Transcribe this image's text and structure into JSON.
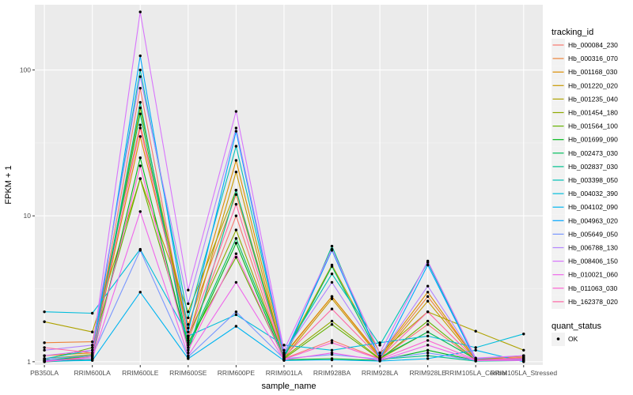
{
  "chart_data": {
    "type": "line",
    "title": "",
    "xlabel": "sample_name",
    "ylabel": "FPKM + 1",
    "y_scale": "log10",
    "ylim": [
      0.95,
      280
    ],
    "y_ticks": [
      1,
      10,
      100
    ],
    "y_tick_labels": [
      "1",
      "10",
      "100"
    ],
    "grid": true,
    "legend_position": "right",
    "background": "#ebebeb",
    "categories": [
      "PB350LA",
      "RRIM600LA",
      "RRIM600LE",
      "RRIM600SE",
      "RRIM600PE",
      "RRIM901LA",
      "RRIM928BA",
      "RRIM928LA",
      "RRIM928LE",
      "RRIM105LA_Control",
      "RRIM105LA_Stressed"
    ],
    "legend": {
      "title": "tracking_id",
      "items": [
        "Hb_000084_230",
        "Hb_000316_070",
        "Hb_001168_030",
        "Hb_001220_020",
        "Hb_001235_040",
        "Hb_001454_180",
        "Hb_001564_100",
        "Hb_001699_090",
        "Hb_002473_030",
        "Hb_002837_030",
        "Hb_003398_050",
        "Hb_004032_390",
        "Hb_004102_090",
        "Hb_004963_020",
        "Hb_005649_050",
        "Hb_006788_130",
        "Hb_008406_150",
        "Hb_010021_060",
        "Hb_011063_030",
        "Hb_162378_020"
      ]
    },
    "legend2": {
      "title": "quant_status",
      "items": [
        "OK"
      ]
    },
    "series": [
      {
        "name": "Hb_000084_230",
        "color": "#F8766D",
        "values": [
          1.05,
          1.1,
          75,
          1.4,
          10,
          1.05,
          1.4,
          1.05,
          1.8,
          1.02,
          1.05
        ]
      },
      {
        "name": "Hb_000316_070",
        "color": "#EC8239",
        "values": [
          1.35,
          1.37,
          42,
          1.8,
          14,
          1.1,
          2.8,
          1.08,
          2.8,
          1.05,
          1.08
        ]
      },
      {
        "name": "Hb_001168_030",
        "color": "#DB8E00",
        "values": [
          1.1,
          1.15,
          35,
          1.7,
          24,
          1.12,
          2.8,
          1.1,
          3.0,
          1.04,
          1.1
        ]
      },
      {
        "name": "Hb_001220_020",
        "color": "#C79800",
        "values": [
          1.02,
          1.08,
          55,
          1.45,
          20,
          1.06,
          2.7,
          1.06,
          2.6,
          1.03,
          1.06
        ]
      },
      {
        "name": "Hb_001235_040",
        "color": "#AEA200",
        "values": [
          1.88,
          1.6,
          18,
          2.2,
          15,
          1.12,
          4.6,
          1.15,
          2.2,
          1.62,
          1.2
        ]
      },
      {
        "name": "Hb_001454_180",
        "color": "#8FAA00",
        "values": [
          1.05,
          1.12,
          55,
          1.5,
          8,
          1.07,
          1.9,
          1.05,
          1.6,
          1.04,
          1.06
        ]
      },
      {
        "name": "Hb_001564_100",
        "color": "#64B200",
        "values": [
          1.03,
          1.25,
          18,
          1.35,
          5.2,
          1.05,
          1.8,
          1.04,
          1.9,
          1.03,
          1.05
        ]
      },
      {
        "name": "Hb_001699_090",
        "color": "#00B81B",
        "values": [
          1.0,
          1.05,
          25,
          1.25,
          6.5,
          1.03,
          1.05,
          1.02,
          1.2,
          1.02,
          1.03
        ]
      },
      {
        "name": "Hb_002473_030",
        "color": "#00BD5C",
        "values": [
          1.02,
          1.1,
          50,
          1.3,
          7,
          1.08,
          4.5,
          1.07,
          1.6,
          1.04,
          1.05
        ]
      },
      {
        "name": "Hb_002837_030",
        "color": "#00C08E",
        "values": [
          1.0,
          1.03,
          60,
          1.15,
          15,
          1.04,
          6.2,
          1.04,
          1.1,
          1.01,
          1.02
        ]
      },
      {
        "name": "Hb_003398_050",
        "color": "#00C1B7",
        "values": [
          1.05,
          1.2,
          100,
          2.0,
          30,
          1.15,
          4.0,
          1.3,
          4.8,
          1.02,
          1.05
        ]
      },
      {
        "name": "Hb_004032_390",
        "color": "#00BDDC",
        "values": [
          2.2,
          2.15,
          5.9,
          1.5,
          2.1,
          1.3,
          1.2,
          1.35,
          1.5,
          1.25,
          1.55
        ]
      },
      {
        "name": "Hb_004102_090",
        "color": "#00B4F0",
        "values": [
          1.01,
          1.02,
          3.0,
          1.05,
          1.75,
          1.02,
          1.03,
          1.01,
          1.05,
          1.2,
          1.0
        ]
      },
      {
        "name": "Hb_004963_020",
        "color": "#00A6FF",
        "values": [
          1.03,
          1.05,
          125,
          1.6,
          38,
          1.1,
          5.8,
          1.05,
          4.6,
          1.02,
          1.04
        ]
      },
      {
        "name": "Hb_005649_050",
        "color": "#7997FF",
        "values": [
          1.05,
          1.1,
          5.8,
          1.08,
          2.2,
          1.05,
          1.12,
          1.04,
          1.15,
          1.02,
          1.03
        ]
      },
      {
        "name": "Hb_006788_130",
        "color": "#B385FF",
        "values": [
          1.2,
          1.3,
          90,
          2.5,
          40,
          1.15,
          3.5,
          1.1,
          3.3,
          1.05,
          1.1
        ]
      },
      {
        "name": "Hb_008406_150",
        "color": "#D874FD",
        "values": [
          1.1,
          1.2,
          250,
          3.1,
          52,
          1.2,
          5.9,
          1.15,
          4.9,
          1.06,
          1.1
        ]
      },
      {
        "name": "Hb_010021_060",
        "color": "#EF67EB",
        "values": [
          1.02,
          1.05,
          10.7,
          1.1,
          3.5,
          1.03,
          1.15,
          1.02,
          1.3,
          1.02,
          1.02
        ]
      },
      {
        "name": "Hb_011063_030",
        "color": "#FD61D1",
        "values": [
          1.0,
          1.08,
          22,
          1.2,
          5.5,
          1.04,
          1.35,
          1.04,
          1.4,
          1.03,
          1.04
        ]
      },
      {
        "name": "Hb_162378_020",
        "color": "#FF67A4",
        "values": [
          1.25,
          1.15,
          40,
          1.5,
          12,
          1.08,
          2.3,
          1.06,
          2.2,
          1.03,
          1.06
        ]
      }
    ]
  }
}
